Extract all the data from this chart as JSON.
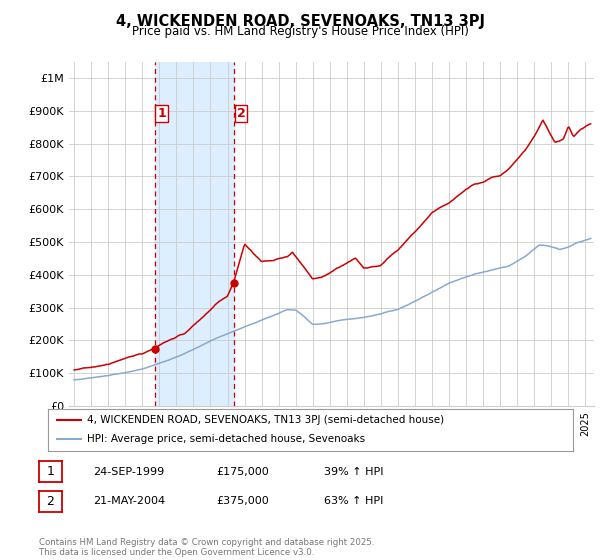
{
  "title": "4, WICKENDEN ROAD, SEVENOAKS, TN13 3PJ",
  "subtitle": "Price paid vs. HM Land Registry's House Price Index (HPI)",
  "ylabel_ticks": [
    "£0",
    "£100K",
    "£200K",
    "£300K",
    "£400K",
    "£500K",
    "£600K",
    "£700K",
    "£800K",
    "£900K",
    "£1M"
  ],
  "ytick_values": [
    0,
    100000,
    200000,
    300000,
    400000,
    500000,
    600000,
    700000,
    800000,
    900000,
    1000000
  ],
  "ylim": [
    0,
    1050000
  ],
  "xlim_start": 1994.7,
  "xlim_end": 2025.5,
  "marker1_x": 1999.73,
  "marker1_y": 175000,
  "marker2_x": 2004.38,
  "marker2_y": 375000,
  "vline1_x": 1999.73,
  "vline2_x": 2004.38,
  "shade_start": 1999.73,
  "shade_end": 2004.38,
  "line1_color": "#cc0000",
  "line2_color": "#88aacc",
  "vline_color": "#cc0000",
  "shade_color": "#ddeeff",
  "background_color": "#ffffff",
  "grid_color": "#cccccc",
  "legend1_label": "4, WICKENDEN ROAD, SEVENOAKS, TN13 3PJ (semi-detached house)",
  "legend2_label": "HPI: Average price, semi-detached house, Sevenoaks",
  "footer": "Contains HM Land Registry data © Crown copyright and database right 2025.\nThis data is licensed under the Open Government Licence v3.0.",
  "table_rows": [
    {
      "num": "1",
      "date": "24-SEP-1999",
      "price": "£175,000",
      "info": "39% ↑ HPI"
    },
    {
      "num": "2",
      "date": "21-MAY-2004",
      "price": "£375,000",
      "info": "63% ↑ HPI"
    }
  ]
}
